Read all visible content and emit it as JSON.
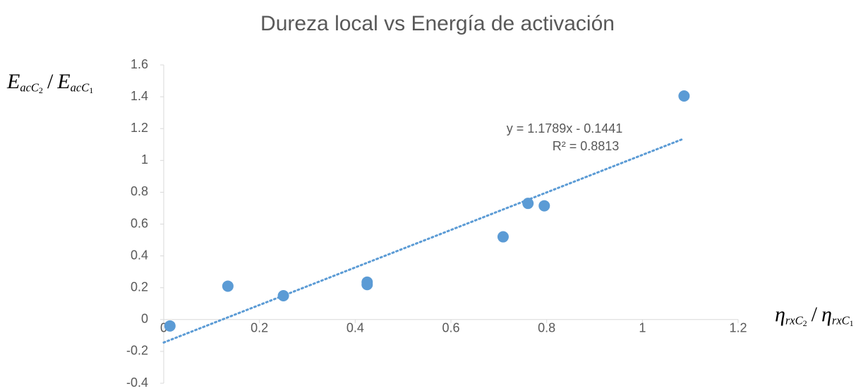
{
  "chart_data": {
    "type": "scatter",
    "title": "Dureza local vs Energía de activación",
    "ylabel": [
      [
        "E",
        "acC",
        "2"
      ],
      "/",
      [
        "E",
        "acC",
        "1"
      ]
    ],
    "xlabel": [
      [
        "η",
        "rxC",
        "2"
      ],
      "/",
      [
        "η",
        "rxC",
        "1"
      ]
    ],
    "series": [
      {
        "name": "Dureza local",
        "color": "#5b9bd5",
        "x": [
          0.013,
          0.134,
          0.25,
          0.425,
          0.425,
          0.709,
          0.761,
          0.795,
          1.087
        ],
        "values": [
          -0.04,
          0.21,
          0.15,
          0.235,
          0.22,
          0.52,
          0.73,
          0.715,
          1.405
        ]
      }
    ],
    "trendline": {
      "slope": 1.1789,
      "intercept": -0.1441,
      "color": "#5b9bd5",
      "equation": "y = 1.1789x - 0.1441",
      "r2": "R² = 0.8813"
    },
    "xlim": [
      0,
      1.2
    ],
    "xticks": [
      0,
      0.2,
      0.4,
      0.6,
      0.8,
      1,
      1.2
    ],
    "ylim": [
      -0.4,
      1.6
    ],
    "yticks": [
      -0.4,
      -0.2,
      0,
      0.2,
      0.4,
      0.6,
      0.8,
      1,
      1.2,
      1.4,
      1.6
    ]
  }
}
